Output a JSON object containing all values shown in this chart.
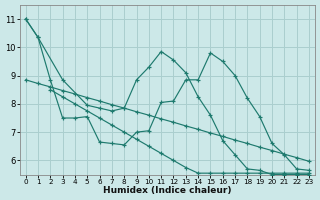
{
  "xlabel": "Humidex (Indice chaleur)",
  "bg_color": "#cce8e8",
  "grid_color": "#aacece",
  "line_color": "#1e7a6e",
  "xlim": [
    -0.5,
    23.5
  ],
  "ylim": [
    5.5,
    11.5
  ],
  "xtick_labels": [
    "0",
    "1",
    "2",
    "3",
    "4",
    "5",
    "6",
    "7",
    "8",
    "9",
    "10",
    "11",
    "12",
    "13",
    "14",
    "15",
    "16",
    "17",
    "18",
    "19",
    "20",
    "21",
    "22",
    "23"
  ],
  "ytick_labels": [
    "6",
    "7",
    "8",
    "9",
    "10",
    "11"
  ],
  "ytick_pos": [
    6,
    7,
    8,
    9,
    10,
    11
  ],
  "series": [
    {
      "x": [
        0,
        1,
        2,
        3,
        4,
        5,
        6,
        7,
        8,
        9,
        10,
        11,
        12,
        13,
        14,
        15,
        16,
        17,
        18,
        19,
        20,
        21,
        22,
        23
      ],
      "y": [
        11.0,
        10.35,
        8.85,
        7.5,
        7.5,
        7.55,
        6.65,
        6.6,
        6.55,
        7.0,
        7.05,
        8.05,
        8.1,
        8.85,
        8.85,
        9.8,
        9.5,
        9.0,
        8.2,
        7.55,
        6.6,
        6.2,
        5.7,
        5.65
      ]
    },
    {
      "x": [
        0,
        1,
        2,
        3,
        4,
        5,
        6,
        7,
        8,
        9,
        10,
        11,
        12,
        13,
        14,
        15,
        16,
        17,
        18,
        19,
        20,
        21,
        22,
        23
      ],
      "y": [
        8.85,
        8.72,
        8.6,
        8.47,
        8.35,
        8.22,
        8.1,
        7.97,
        7.85,
        7.72,
        7.6,
        7.47,
        7.35,
        7.22,
        7.1,
        6.97,
        6.85,
        6.72,
        6.6,
        6.47,
        6.35,
        6.22,
        6.1,
        5.97
      ]
    },
    {
      "x": [
        2,
        3,
        4,
        5,
        6,
        7,
        8,
        9,
        10,
        11,
        12,
        13,
        14,
        15,
        16,
        17,
        18,
        19,
        20,
        21,
        22,
        23
      ],
      "y": [
        8.5,
        8.25,
        8.0,
        7.75,
        7.5,
        7.25,
        7.0,
        6.75,
        6.5,
        6.25,
        6.0,
        5.75,
        5.55,
        5.55,
        5.55,
        5.55,
        5.55,
        5.55,
        5.55,
        5.55,
        5.55,
        5.55
      ]
    },
    {
      "x": [
        0,
        1,
        3,
        5,
        6,
        7,
        8,
        9,
        10,
        11,
        12,
        13,
        14,
        15,
        16,
        17,
        18,
        19,
        20,
        21,
        22,
        23
      ],
      "y": [
        11.0,
        10.35,
        8.85,
        7.95,
        7.85,
        7.75,
        7.85,
        8.85,
        9.3,
        9.85,
        9.55,
        9.1,
        8.25,
        7.6,
        6.7,
        6.2,
        5.7,
        5.65,
        5.5,
        5.5,
        5.5,
        5.5
      ]
    }
  ]
}
